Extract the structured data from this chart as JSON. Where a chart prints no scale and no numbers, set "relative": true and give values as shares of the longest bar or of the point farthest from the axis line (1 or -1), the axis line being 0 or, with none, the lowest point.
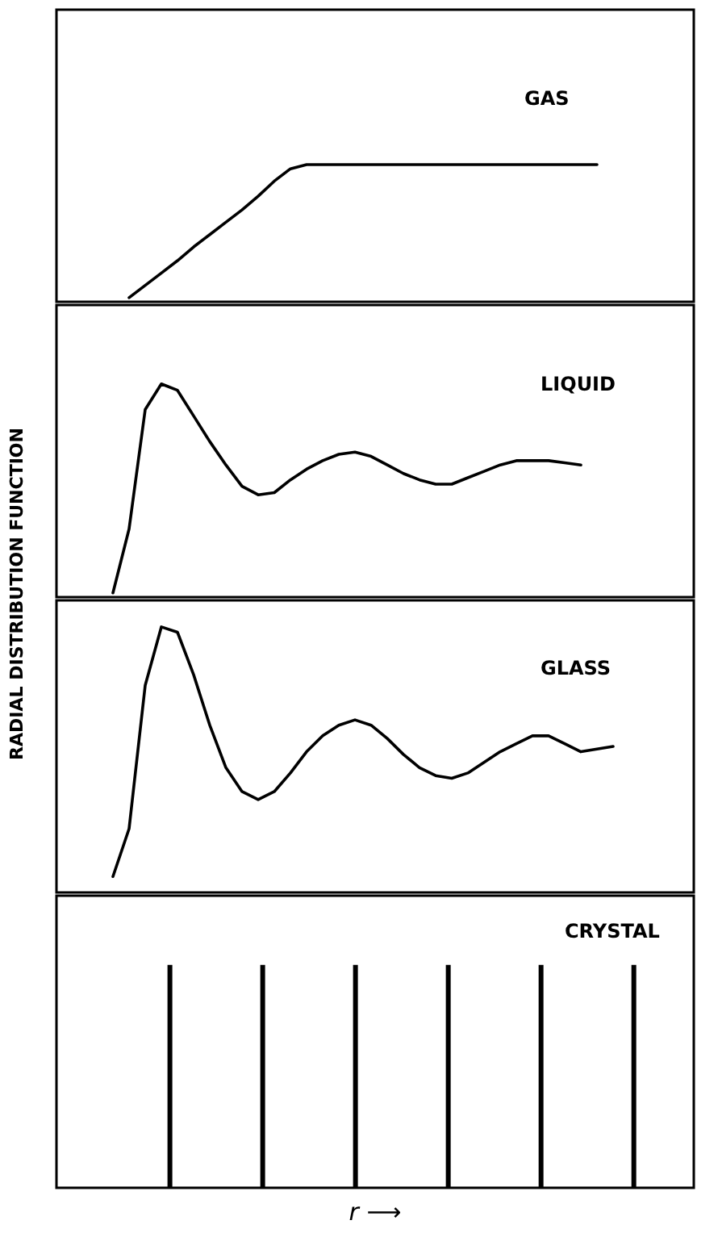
{
  "chart_data": [
    {
      "type": "line",
      "title": "GAS",
      "relative": true,
      "color": "#000000",
      "categories": [
        null,
        null,
        null,
        null,
        null,
        null,
        null,
        null,
        null,
        null,
        null,
        null,
        null,
        null,
        null,
        null,
        null,
        null,
        null,
        null,
        null,
        null,
        null,
        null,
        null,
        null,
        null,
        null,
        null,
        null,
        null,
        null,
        null,
        null,
        null,
        null,
        null,
        null,
        null,
        null
      ],
      "values": [
        null,
        null,
        null,
        null,
        0.03,
        0.12,
        0.21,
        0.3,
        0.4,
        0.49,
        0.58,
        0.67,
        0.77,
        0.88,
        0.97,
        1,
        1,
        1,
        1,
        1,
        1,
        1,
        1,
        1,
        1,
        1,
        1,
        1,
        1,
        1,
        1,
        1,
        1,
        1,
        null,
        null,
        null,
        null,
        null,
        null
      ]
    },
    {
      "type": "line",
      "title": "LIQUID",
      "ylabel": "RADIAL  DISTRIBUTION  FUNCTION",
      "relative": true,
      "color": "#000000",
      "categories": [
        null,
        null,
        null,
        null,
        null,
        null,
        null,
        null,
        null,
        null,
        null,
        null,
        null,
        null,
        null,
        null,
        null,
        null,
        null,
        null,
        null,
        null,
        null,
        null,
        null,
        null,
        null,
        null,
        null,
        null,
        null,
        null,
        null,
        null,
        null,
        null,
        null,
        null,
        null,
        null
      ],
      "values": [
        null,
        null,
        null,
        0.02,
        0.32,
        0.88,
        1.0,
        0.97,
        0.85,
        0.73,
        0.62,
        0.52,
        0.48,
        0.49,
        0.55,
        0.6,
        0.64,
        0.67,
        0.68,
        0.66,
        0.62,
        0.58,
        0.55,
        0.53,
        0.53,
        0.56,
        0.59,
        0.62,
        0.64,
        0.64,
        0.64,
        0.63,
        0.62,
        null,
        null,
        null,
        null,
        null,
        null,
        null
      ]
    },
    {
      "type": "line",
      "title": "GLASS",
      "relative": true,
      "color": "#000000",
      "categories": [
        null,
        null,
        null,
        null,
        null,
        null,
        null,
        null,
        null,
        null,
        null,
        null,
        null,
        null,
        null,
        null,
        null,
        null,
        null,
        null,
        null,
        null,
        null,
        null,
        null,
        null,
        null,
        null,
        null,
        null,
        null,
        null,
        null,
        null,
        null,
        null,
        null,
        null,
        null,
        null
      ],
      "values": [
        null,
        null,
        null,
        0.06,
        0.24,
        0.78,
        1.0,
        0.98,
        0.82,
        0.63,
        0.47,
        0.38,
        0.35,
        0.38,
        0.45,
        0.53,
        0.59,
        0.63,
        0.65,
        0.63,
        0.58,
        0.52,
        0.47,
        0.44,
        0.43,
        0.45,
        0.49,
        0.53,
        0.56,
        0.59,
        0.59,
        0.56,
        0.53,
        0.54,
        0.55,
        null,
        null,
        null,
        null,
        null
      ]
    },
    {
      "type": "bar",
      "title": "CRYSTAL",
      "xlabel": "r ⟶",
      "relative": true,
      "color": "#000000",
      "categories": [
        null,
        null,
        null,
        null,
        null,
        null
      ],
      "values": [
        1,
        1,
        1,
        1,
        1,
        1
      ]
    }
  ]
}
